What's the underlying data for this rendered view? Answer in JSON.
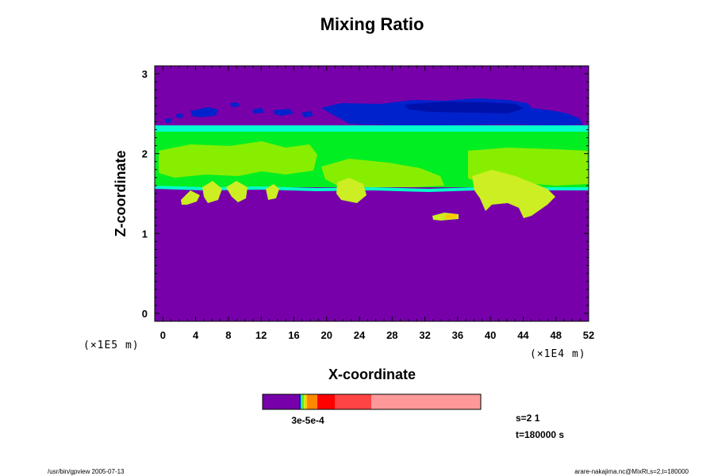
{
  "chart_data": {
    "type": "heatmap",
    "title": "Mixing Ratio",
    "xlabel": "X-coordinate",
    "ylabel": "Z-coordinate",
    "x_multiplier": "(×1E4 m)",
    "y_multiplier": "(×1E5 m)",
    "xlim": [
      -1,
      52
    ],
    "ylim": [
      -0.1,
      3.1
    ],
    "x_ticks": [
      "0",
      "4",
      "8",
      "12",
      "16",
      "20",
      "24",
      "28",
      "32",
      "36",
      "40",
      "44",
      "48",
      "52"
    ],
    "y_ticks": [
      "0",
      "1",
      "2",
      "3"
    ],
    "grid": false,
    "colorbar": {
      "position": "bottom",
      "labels_text": "3e-5e-4",
      "colors": [
        "#7700aa",
        "#0022cc",
        "#00ffcc",
        "#66ee00",
        "#ccee22",
        "#ffcc00",
        "#ff8800",
        "#ff0000",
        "#ff4444",
        "#ff9999"
      ]
    },
    "field_colors": {
      "background": "#7700aa",
      "upper_blue": "#0022cc",
      "upper_dark_blue": "#0011aa",
      "layer_cyan": "#00ffcc",
      "layer_green": "#00ee22",
      "layer_lightgreen": "#88ee00",
      "cell_yellowgreen": "#ccee22",
      "cell_orange": "#ffcc00"
    }
  },
  "annotations": {
    "s_label": "s=2 1",
    "t_label": "t=180000 s",
    "footer_left": "/usr/bin/gpview 2005-07-13",
    "footer_right": "arare-nakajima.nc@MixRt,s=2,t=180000"
  }
}
